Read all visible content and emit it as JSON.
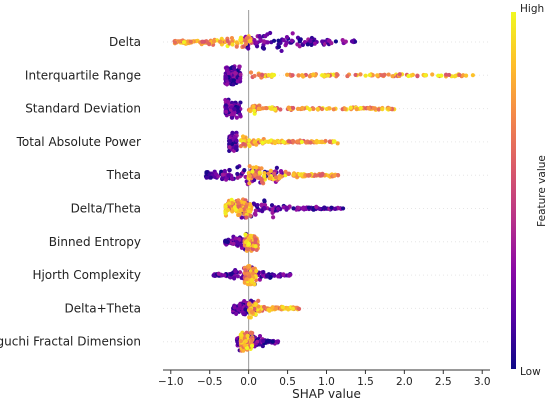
{
  "chart_data": {
    "type": "scatter",
    "subtype": "shap-beeswarm",
    "xlabel": "SHAP value",
    "xlim": [
      -1.1,
      3.1
    ],
    "xticks": [
      -1.0,
      -0.5,
      0.0,
      0.5,
      1.0,
      1.5,
      2.0,
      2.5,
      3.0
    ],
    "xtick_labels": [
      "−1.0",
      "−0.5",
      "0.0",
      "0.5",
      "1.0",
      "1.5",
      "2.0",
      "2.5",
      "3.0"
    ],
    "colorbar": {
      "title": "Feature value",
      "high_label": "High",
      "low_label": "Low",
      "colormap": "plasma",
      "colors": [
        "#0d0887",
        "#5302a3",
        "#8b0aa5",
        "#b83289",
        "#db5c68",
        "#f48849",
        "#febd2a",
        "#f0f921"
      ]
    },
    "grid": false,
    "features": [
      {
        "name": "Delta",
        "low_range": [
          -0.1,
          1.4
        ],
        "high_range": [
          -0.95,
          0.05
        ],
        "density_peak": 0.3,
        "spread": 0.5
      },
      {
        "name": "Interquartile Range",
        "low_range": [
          -0.3,
          -0.1
        ],
        "high_range": [
          0.0,
          2.9
        ],
        "density_peak": -0.2,
        "spread": 0.3
      },
      {
        "name": "Standard Deviation",
        "low_range": [
          -0.3,
          -0.1
        ],
        "high_range": [
          0.0,
          1.9
        ],
        "density_peak": -0.2,
        "spread": 0.3
      },
      {
        "name": "Total Absolute Power",
        "low_range": [
          -0.25,
          -0.15
        ],
        "high_range": [
          -0.1,
          1.15
        ],
        "density_peak": -0.2,
        "spread": 0.25
      },
      {
        "name": "Theta",
        "low_range": [
          -0.55,
          0.45
        ],
        "high_range": [
          0.0,
          1.15
        ],
        "density_peak": 0.05,
        "spread": 0.4
      },
      {
        "name": "Delta/Theta",
        "low_range": [
          -0.1,
          1.25
        ],
        "high_range": [
          -0.3,
          0.05
        ],
        "density_peak": 0.0,
        "spread": 0.35
      },
      {
        "name": "Binned Entropy",
        "low_range": [
          -0.3,
          0.05
        ],
        "high_range": [
          -0.05,
          0.12
        ],
        "density_peak": 0.0,
        "spread": 0.12
      },
      {
        "name": "Hjorth Complexity",
        "low_range": [
          -0.45,
          0.55
        ],
        "high_range": [
          -0.05,
          0.1
        ],
        "density_peak": 0.0,
        "spread": 0.15
      },
      {
        "name": "Delta+Theta",
        "low_range": [
          -0.2,
          0.1
        ],
        "high_range": [
          0.0,
          0.65
        ],
        "density_peak": 0.0,
        "spread": 0.12
      },
      {
        "name": "Higuchi Fractal Dimension",
        "low_range": [
          -0.15,
          0.38
        ],
        "high_range": [
          -0.1,
          0.05
        ],
        "density_peak": 0.0,
        "spread": 0.12
      }
    ]
  }
}
